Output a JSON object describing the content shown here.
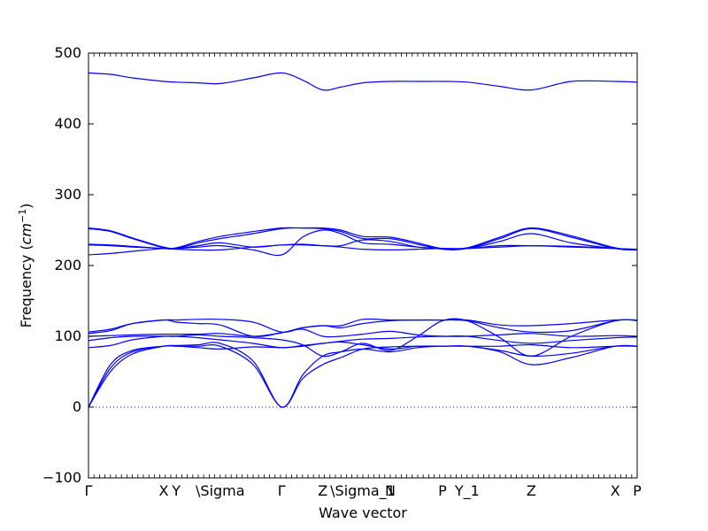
{
  "chart_data": {
    "type": "line",
    "title": "",
    "xlabel": "Wave vector",
    "ylabel_text": "Frequency (",
    "ylabel_unit": "cm",
    "ylabel_exp": "−1",
    "ylabel_close": ")",
    "ylim": [
      -100,
      500
    ],
    "yticks": [
      -100,
      0,
      100,
      200,
      300,
      400,
      500
    ],
    "xlim": [
      0,
      1
    ],
    "zero_line": true,
    "line_color": "#0000ff",
    "high_symmetry_points": [
      {
        "label": "Γ",
        "x": 0.0
      },
      {
        "label": "X",
        "x": 0.137
      },
      {
        "label": "Y",
        "x": 0.16
      },
      {
        "label": "\\Sigma",
        "x": 0.24
      },
      {
        "label": "Γ",
        "x": 0.352
      },
      {
        "label": "Z",
        "x": 0.427
      },
      {
        "label": "\\Sigma_1",
        "x": 0.5
      },
      {
        "label": "N",
        "x": 0.55
      },
      {
        "label": "P",
        "x": 0.645
      },
      {
        "label": "Y_1",
        "x": 0.69
      },
      {
        "label": "Z",
        "x": 0.807
      },
      {
        "label": "X",
        "x": 0.96
      },
      {
        "label": "P",
        "x": 1.0
      }
    ],
    "series": [
      {
        "x": [
          0,
          0.04,
          0.08,
          0.137,
          0.16,
          0.2,
          0.24,
          0.3,
          0.352,
          0.39,
          0.427,
          0.46,
          0.5,
          0.55,
          0.6,
          0.645,
          0.69,
          0.75,
          0.807,
          0.88,
          0.96,
          1.0
        ],
        "y": [
          0,
          60,
          80,
          86,
          86,
          84,
          82,
          85,
          84,
          86,
          90,
          93,
          96,
          97,
          99,
          100,
          100,
          94,
          90,
          94,
          98,
          99
        ]
      },
      {
        "x": [
          0,
          0.04,
          0.08,
          0.137,
          0.16,
          0.2,
          0.24,
          0.3,
          0.352,
          0.39,
          0.427,
          0.46,
          0.5,
          0.55,
          0.6,
          0.645,
          0.69,
          0.75,
          0.807,
          0.88,
          0.96,
          1.0
        ],
        "y": [
          0,
          55,
          78,
          86,
          86,
          86,
          86,
          60,
          0,
          40,
          60,
          70,
          82,
          85,
          86,
          86,
          86,
          78,
          60,
          70,
          86,
          86
        ]
      },
      {
        "x": [
          0,
          0.04,
          0.08,
          0.137,
          0.16,
          0.2,
          0.24,
          0.3,
          0.352,
          0.39,
          0.427,
          0.46,
          0.5,
          0.55,
          0.6,
          0.645,
          0.69,
          0.75,
          0.807,
          0.88,
          0.96,
          1.0
        ],
        "y": [
          0,
          50,
          75,
          86,
          87,
          88,
          90,
          65,
          0,
          45,
          72,
          78,
          82,
          78,
          84,
          86,
          86,
          86,
          88,
          84,
          86,
          86
        ]
      },
      {
        "x": [
          0,
          0.04,
          0.08,
          0.137,
          0.16,
          0.2,
          0.24,
          0.3,
          0.352,
          0.39,
          0.427,
          0.46,
          0.5,
          0.55,
          0.6,
          0.645,
          0.69,
          0.75,
          0.807,
          0.88,
          0.96,
          1.0
        ],
        "y": [
          84,
          87,
          95,
          100,
          100,
          98,
          95,
          90,
          84,
          87,
          90,
          92,
          88,
          82,
          86,
          86,
          86,
          80,
          72,
          76,
          86,
          86
        ]
      },
      {
        "x": [
          0,
          0.04,
          0.08,
          0.137,
          0.16,
          0.2,
          0.24,
          0.3,
          0.352,
          0.39,
          0.427,
          0.46,
          0.5,
          0.55,
          0.6,
          0.645,
          0.69,
          0.75,
          0.807,
          0.88,
          0.96,
          1.0
        ],
        "y": [
          94,
          98,
          100,
          100,
          100,
          102,
          100,
          98,
          95,
          88,
          72,
          78,
          90,
          80,
          100,
          122,
          122,
          98,
          72,
          100,
          122,
          122
        ]
      },
      {
        "x": [
          0,
          0.04,
          0.08,
          0.137,
          0.16,
          0.2,
          0.24,
          0.3,
          0.352,
          0.39,
          0.427,
          0.46,
          0.5,
          0.55,
          0.6,
          0.645,
          0.69,
          0.75,
          0.807,
          0.88,
          0.96,
          1.0
        ],
        "y": [
          100,
          101,
          102,
          103,
          103,
          103,
          104,
          100,
          105,
          110,
          100,
          100,
          103,
          107,
          102,
          100,
          100,
          102,
          104,
          100,
          101,
          100
        ]
      },
      {
        "x": [
          0,
          0.04,
          0.08,
          0.137,
          0.16,
          0.2,
          0.24,
          0.3,
          0.352,
          0.39,
          0.427,
          0.46,
          0.5,
          0.55,
          0.6,
          0.645,
          0.69,
          0.75,
          0.807,
          0.88,
          0.96,
          1.0
        ],
        "y": [
          104,
          108,
          118,
          123,
          120,
          118,
          116,
          100,
          105,
          112,
          115,
          112,
          118,
          122,
          123,
          123,
          122,
          112,
          106,
          108,
          122,
          123
        ]
      },
      {
        "x": [
          0,
          0.04,
          0.08,
          0.137,
          0.16,
          0.2,
          0.24,
          0.3,
          0.352,
          0.39,
          0.427,
          0.46,
          0.5,
          0.55,
          0.6,
          0.645,
          0.69,
          0.75,
          0.807,
          0.88,
          0.96,
          1.0
        ],
        "y": [
          106,
          110,
          118,
          123,
          123,
          124,
          124,
          120,
          106,
          112,
          115,
          115,
          124,
          123,
          123,
          123,
          123,
          116,
          115,
          118,
          123,
          123
        ]
      },
      {
        "x": [
          0,
          0.04,
          0.08,
          0.137,
          0.16,
          0.2,
          0.24,
          0.3,
          0.352,
          0.39,
          0.427,
          0.46,
          0.5,
          0.55,
          0.6,
          0.645,
          0.69,
          0.75,
          0.807,
          0.88,
          0.96,
          1.0
        ],
        "y": [
          215,
          217,
          220,
          224,
          224,
          226,
          228,
          222,
          215,
          240,
          250,
          245,
          232,
          230,
          226,
          224,
          224,
          234,
          245,
          232,
          224,
          223
        ]
      },
      {
        "x": [
          0,
          0.04,
          0.08,
          0.137,
          0.16,
          0.2,
          0.24,
          0.3,
          0.352,
          0.39,
          0.427,
          0.46,
          0.5,
          0.55,
          0.6,
          0.645,
          0.69,
          0.75,
          0.807,
          0.88,
          0.96,
          1.0
        ],
        "y": [
          229,
          228,
          226,
          224,
          223,
          222,
          222,
          226,
          229,
          230,
          228,
          226,
          223,
          222,
          223,
          224,
          224,
          226,
          228,
          226,
          224,
          223
        ]
      },
      {
        "x": [
          0,
          0.04,
          0.08,
          0.137,
          0.16,
          0.2,
          0.24,
          0.3,
          0.352,
          0.39,
          0.427,
          0.46,
          0.5,
          0.55,
          0.6,
          0.645,
          0.69,
          0.75,
          0.807,
          0.88,
          0.96,
          1.0
        ],
        "y": [
          230,
          229,
          227,
          224,
          224,
          228,
          232,
          226,
          229,
          229,
          228,
          228,
          236,
          234,
          226,
          224,
          224,
          228,
          228,
          227,
          224,
          222
        ]
      },
      {
        "x": [
          0,
          0.04,
          0.08,
          0.137,
          0.16,
          0.2,
          0.24,
          0.3,
          0.352,
          0.39,
          0.427,
          0.46,
          0.5,
          0.55,
          0.6,
          0.645,
          0.69,
          0.75,
          0.807,
          0.88,
          0.96,
          1.0
        ],
        "y": [
          252,
          248,
          238,
          225,
          224,
          232,
          238,
          245,
          252,
          253,
          252,
          248,
          238,
          238,
          230,
          223,
          224,
          238,
          252,
          240,
          224,
          222
        ]
      },
      {
        "x": [
          0,
          0.04,
          0.08,
          0.137,
          0.16,
          0.2,
          0.24,
          0.3,
          0.352,
          0.39,
          0.427,
          0.46,
          0.5,
          0.55,
          0.6,
          0.645,
          0.69,
          0.75,
          0.807,
          0.88,
          0.96,
          1.0
        ],
        "y": [
          253,
          249,
          239,
          226,
          225,
          234,
          241,
          248,
          253,
          253,
          253,
          250,
          241,
          240,
          232,
          224,
          225,
          240,
          253,
          242,
          225,
          223
        ]
      },
      {
        "x": [
          0,
          0.04,
          0.08,
          0.137,
          0.16,
          0.2,
          0.24,
          0.3,
          0.352,
          0.39,
          0.427,
          0.46,
          0.5,
          0.55,
          0.6,
          0.645,
          0.69,
          0.75,
          0.807,
          0.88,
          0.96,
          1.0
        ],
        "y": [
          472,
          470,
          465,
          460,
          459,
          458,
          457,
          465,
          472,
          462,
          448,
          452,
          458,
          460,
          460,
          460,
          459,
          453,
          448,
          460,
          460,
          459
        ]
      }
    ]
  }
}
